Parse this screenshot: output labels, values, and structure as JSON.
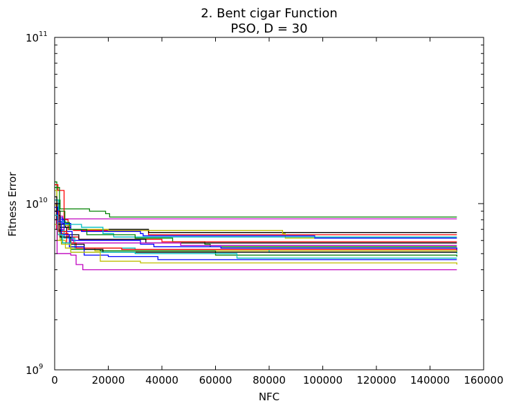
{
  "chart_data": {
    "type": "line",
    "title": "2.   Bent cigar Function",
    "subtitle": "PSO, D = 30",
    "xlabel": "NFC",
    "ylabel": "Fitness Error",
    "xlim": [
      0,
      160000
    ],
    "ylim": [
      1000000000,
      100000000000
    ],
    "yscale": "log",
    "grid": false,
    "legend": "none",
    "x_ticks": [
      "0",
      "20000",
      "40000",
      "60000",
      "80000",
      "100000",
      "120000",
      "140000",
      "160000"
    ],
    "x_tick_values": [
      0,
      20000,
      40000,
      60000,
      80000,
      100000,
      120000,
      140000,
      160000
    ],
    "y_ticks": [
      {
        "base": "10",
        "exp": "9",
        "value": 1000000000
      },
      {
        "base": "10",
        "exp": "10",
        "value": 10000000000
      },
      {
        "base": "10",
        "exp": "11",
        "value": 100000000000
      }
    ],
    "series": [
      {
        "color": "#008000",
        "x": [
          0,
          800,
          2000,
          13000,
          19000,
          20500,
          150000
        ],
        "y": [
          13500000000,
          10500000000,
          9300000000,
          9000000000,
          8700000000,
          8300000000,
          8300000000
        ]
      },
      {
        "color": "#bf00bf",
        "x": [
          0,
          1000,
          3000,
          150000
        ],
        "y": [
          10000000000,
          8400000000,
          8100000000,
          8100000000
        ]
      },
      {
        "color": "#ff0000",
        "x": [
          0,
          1200,
          3500,
          5000,
          7000,
          33000,
          35000,
          150000
        ],
        "y": [
          13000000000,
          12000000000,
          8000000000,
          7000000000,
          6900000000,
          6900000000,
          6500000000,
          6500000000
        ]
      },
      {
        "color": "#000000",
        "x": [
          0,
          900,
          2000,
          4000,
          6000,
          35000,
          150000
        ],
        "y": [
          10500000000,
          8500000000,
          7500000000,
          7200000000,
          7000000000,
          6700000000,
          6700000000
        ]
      },
      {
        "color": "#bfbf00",
        "x": [
          0,
          1500,
          3500,
          6000,
          20000,
          85000,
          86000,
          150000
        ],
        "y": [
          9800000000,
          8000000000,
          7400000000,
          7000000000,
          6900000000,
          6600000000,
          6200000000,
          6200000000
        ]
      },
      {
        "color": "#0000ff",
        "x": [
          0,
          1200,
          3000,
          6000,
          10000,
          32000,
          33000,
          97000,
          150000
        ],
        "y": [
          9500000000,
          8200000000,
          7600000000,
          7000000000,
          6800000000,
          6600000000,
          6400000000,
          6200000000,
          6200000000
        ]
      },
      {
        "color": "#00bfbf",
        "x": [
          0,
          1500,
          4000,
          10000,
          18000,
          22000,
          150000
        ],
        "y": [
          9000000000,
          7800000000,
          7500000000,
          7200000000,
          6600000000,
          6300000000,
          6300000000
        ]
      },
      {
        "color": "#008000",
        "x": [
          0,
          1800,
          3800,
          5500,
          12000,
          30000,
          44000,
          56000,
          58000,
          150000
        ],
        "y": [
          12500000000,
          9000000000,
          7700000000,
          7000000000,
          6500000000,
          6200000000,
          5900000000,
          5700000000,
          5500000000,
          5500000000
        ]
      },
      {
        "color": "#ff0000",
        "x": [
          0,
          700,
          2500,
          5000,
          9000,
          40000,
          150000
        ],
        "y": [
          10000000000,
          7000000000,
          6600000000,
          6300000000,
          6100000000,
          5900000000,
          5900000000
        ]
      },
      {
        "color": "#000000",
        "x": [
          0,
          2000,
          4500,
          9000,
          34000,
          150000
        ],
        "y": [
          9000000000,
          7200000000,
          6500000000,
          6100000000,
          5800000000,
          5800000000
        ]
      },
      {
        "color": "#0000ff",
        "x": [
          0,
          1500,
          3500,
          6500,
          32000,
          37000,
          62000,
          150000
        ],
        "y": [
          10000000000,
          8000000000,
          6800000000,
          6000000000,
          5700000000,
          5500000000,
          5400000000,
          5200000000
        ]
      },
      {
        "color": "#bf00bf",
        "x": [
          0,
          1500,
          3500,
          7000,
          47000,
          150000
        ],
        "y": [
          8000000000,
          7000000000,
          6200000000,
          5800000000,
          5600000000,
          5600000000
        ]
      },
      {
        "color": "#bfbf00",
        "x": [
          0,
          800,
          2000,
          4000,
          15000,
          150000
        ],
        "y": [
          12000000000,
          7500000000,
          6000000000,
          5400000000,
          5200000000,
          5100000000
        ]
      },
      {
        "color": "#00bfbf",
        "x": [
          0,
          1500,
          3500,
          7500,
          30000,
          80000,
          150000
        ],
        "y": [
          10500000000,
          6900000000,
          6200000000,
          5400000000,
          5300000000,
          5100000000,
          5000000000
        ]
      },
      {
        "color": "#008000",
        "x": [
          0,
          1200,
          2500,
          6000,
          17000,
          60000,
          150000
        ],
        "y": [
          8500000000,
          6900000000,
          5800000000,
          5300000000,
          5200000000,
          4900000000,
          4800000000
        ]
      },
      {
        "color": "#ff0000",
        "x": [
          0,
          1500,
          4500,
          8000,
          25000,
          150000
        ],
        "y": [
          9000000000,
          6800000000,
          5800000000,
          5400000000,
          5300000000,
          5300000000
        ]
      },
      {
        "color": "#000000",
        "x": [
          0,
          800,
          2000,
          6000,
          11000,
          18000,
          150000
        ],
        "y": [
          11000000000,
          7500000000,
          6300000000,
          5700000000,
          5300000000,
          5100000000,
          5100000000
        ]
      },
      {
        "color": "#0000ff",
        "x": [
          0,
          1000,
          2500,
          5500,
          11000,
          20000,
          38500,
          150000
        ],
        "y": [
          9000000000,
          7800000000,
          6500000000,
          5500000000,
          4900000000,
          4800000000,
          4600000000,
          4600000000
        ]
      },
      {
        "color": "#00bfbf",
        "x": [
          0,
          1200,
          3000,
          6000,
          30000,
          68000,
          150000
        ],
        "y": [
          8500000000,
          6500000000,
          5800000000,
          5100000000,
          5000000000,
          4700000000,
          4700000000
        ]
      },
      {
        "color": "#bfbf00",
        "x": [
          0,
          1000,
          2500,
          6000,
          17000,
          32000,
          150000
        ],
        "y": [
          7500000000,
          6000000000,
          5700000000,
          5100000000,
          4500000000,
          4400000000,
          4300000000
        ]
      },
      {
        "color": "#bf00bf",
        "x": [
          0,
          900,
          2500,
          6000,
          8000,
          10500,
          150000
        ],
        "y": [
          8000000000,
          5000000000,
          5000000000,
          4900000000,
          4300000000,
          4000000000,
          4000000000
        ]
      }
    ]
  }
}
